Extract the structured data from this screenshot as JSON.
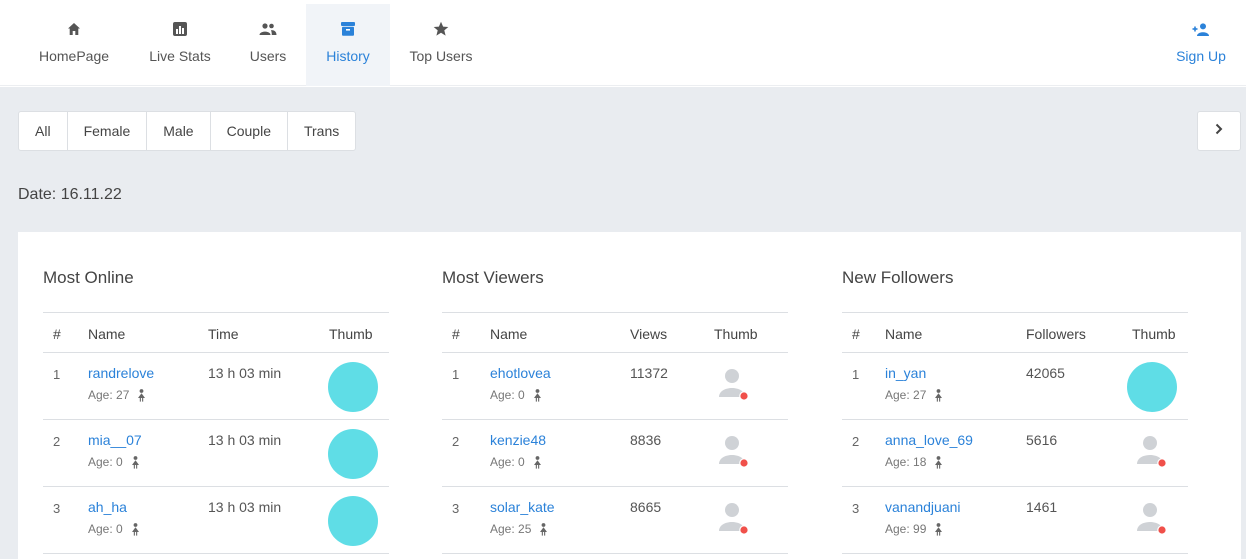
{
  "nav": {
    "items": [
      {
        "label": "HomePage",
        "icon": "home-icon"
      },
      {
        "label": "Live Stats",
        "icon": "bar-chart-icon"
      },
      {
        "label": "Users",
        "icon": "users-icon"
      },
      {
        "label": "History",
        "icon": "archive-icon",
        "active": true
      },
      {
        "label": "Top Users",
        "icon": "star-icon"
      }
    ],
    "signup": {
      "label": "Sign Up",
      "icon": "add-user-icon"
    }
  },
  "filters": [
    "All",
    "Female",
    "Male",
    "Couple",
    "Trans"
  ],
  "date_label": "Date: 16.11.22",
  "colors": {
    "accent": "#2b82d9",
    "band": "#e9ecf0",
    "thumb": "#5fdde6",
    "status_dot": "#f0504a"
  },
  "sections": [
    {
      "title": "Most Online",
      "headers": [
        "#",
        "Name",
        "Time",
        "Thumb"
      ],
      "rows": [
        {
          "rank": "1",
          "name": "randrelove",
          "age": "Age: 27",
          "value": "13 h 03 min",
          "thumb": "image"
        },
        {
          "rank": "2",
          "name": "mia__07",
          "age": "Age: 0",
          "value": "13 h 03 min",
          "thumb": "image"
        },
        {
          "rank": "3",
          "name": "ah_ha",
          "age": "Age: 0",
          "value": "13 h 03 min",
          "thumb": "image"
        }
      ]
    },
    {
      "title": "Most Viewers",
      "headers": [
        "#",
        "Name",
        "Views",
        "Thumb"
      ],
      "rows": [
        {
          "rank": "1",
          "name": "ehotlovea",
          "age": "Age: 0",
          "value": "11372",
          "thumb": "placeholder"
        },
        {
          "rank": "2",
          "name": "kenzie48",
          "age": "Age: 0",
          "value": "8836",
          "thumb": "placeholder"
        },
        {
          "rank": "3",
          "name": "solar_kate",
          "age": "Age: 25",
          "value": "8665",
          "thumb": "placeholder"
        }
      ]
    },
    {
      "title": "New Followers",
      "headers": [
        "#",
        "Name",
        "Followers",
        "Thumb"
      ],
      "rows": [
        {
          "rank": "1",
          "name": "in_yan",
          "age": "Age: 27",
          "value": "42065",
          "thumb": "image"
        },
        {
          "rank": "2",
          "name": "anna_love_69",
          "age": "Age: 18",
          "value": "5616",
          "thumb": "placeholder"
        },
        {
          "rank": "3",
          "name": "vanandjuani",
          "age": "Age: 99",
          "value": "1461",
          "thumb": "placeholder"
        }
      ]
    }
  ]
}
